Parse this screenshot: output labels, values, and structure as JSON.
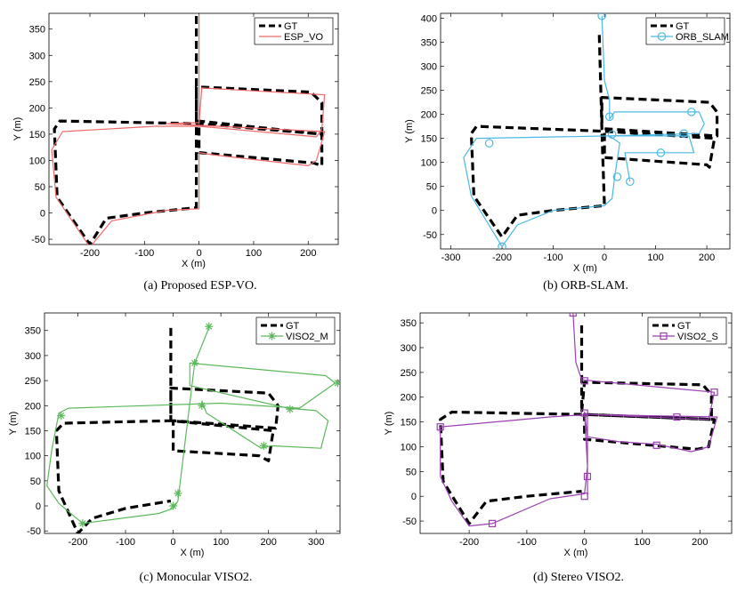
{
  "chart_data": [
    {
      "type": "line",
      "caption": "(a) Proposed ESP-VO.",
      "xlabel": "X (m)",
      "ylabel": "Y (m)",
      "xlim": [
        -275,
        255
      ],
      "ylim": [
        -60,
        380
      ],
      "xticks": [
        -200,
        -100,
        0,
        100,
        200
      ],
      "yticks": [
        -50,
        0,
        50,
        100,
        150,
        200,
        250,
        300,
        350
      ],
      "legend": "top-right",
      "series": [
        {
          "name": "GT",
          "color": "#000000",
          "style": "dashed",
          "marker": "",
          "points": [
            [
              -5,
              375
            ],
            [
              -5,
              170
            ],
            [
              -5,
              240
            ],
            [
              205,
              230
            ],
            [
              225,
              210
            ],
            [
              225,
              150
            ],
            [
              0,
              175
            ],
            [
              0,
              115
            ],
            [
              210,
              95
            ],
            [
              225,
              90
            ],
            [
              225,
              150
            ],
            [
              0,
              170
            ],
            [
              -255,
              175
            ],
            [
              -265,
              160
            ],
            [
              -260,
              30
            ],
            [
              -200,
              -60
            ],
            [
              -170,
              -10
            ],
            [
              -100,
              0
            ],
            [
              -5,
              10
            ],
            [
              -5,
              170
            ]
          ]
        },
        {
          "name": "ESP_VO",
          "color": "#ee6a6a",
          "style": "solid",
          "marker": "",
          "points": [
            [
              0,
              378
            ],
            [
              0,
              170
            ],
            [
              5,
              238
            ],
            [
              230,
              225
            ],
            [
              225,
              160
            ],
            [
              215,
              145
            ],
            [
              0,
              165
            ],
            [
              -80,
              165
            ],
            [
              -250,
              155
            ],
            [
              -270,
              120
            ],
            [
              -262,
              30
            ],
            [
              -200,
              -65
            ],
            [
              -160,
              -15
            ],
            [
              -60,
              5
            ],
            [
              0,
              8
            ],
            [
              0,
              115
            ],
            [
              30,
              110
            ],
            [
              200,
              90
            ],
            [
              215,
              100
            ],
            [
              230,
              155
            ],
            [
              -60,
              170
            ],
            [
              0,
              172
            ]
          ],
          "marker_points": []
        }
      ]
    },
    {
      "type": "line",
      "caption": "(b) ORB-SLAM.",
      "xlabel": "X (m)",
      "ylabel": "Y (m)",
      "xlim": [
        -320,
        245
      ],
      "ylim": [
        -80,
        410
      ],
      "xticks": [
        -300,
        -200,
        -100,
        0,
        100,
        200
      ],
      "yticks": [
        -50,
        0,
        50,
        100,
        150,
        200,
        250,
        300,
        350,
        400
      ],
      "legend": "top-right",
      "series": [
        {
          "name": "GT",
          "color": "#000000",
          "style": "dashed",
          "marker": "",
          "points": [
            [
              -10,
              365
            ],
            [
              -5,
              170
            ],
            [
              -5,
              235
            ],
            [
              205,
              225
            ],
            [
              220,
              205
            ],
            [
              220,
              155
            ],
            [
              0,
              170
            ],
            [
              0,
              110
            ],
            [
              200,
              95
            ],
            [
              205,
              90
            ],
            [
              215,
              150
            ],
            [
              -5,
              165
            ],
            [
              -250,
              175
            ],
            [
              -260,
              160
            ],
            [
              -255,
              30
            ],
            [
              -200,
              -55
            ],
            [
              -170,
              -10
            ],
            [
              -100,
              0
            ],
            [
              0,
              10
            ],
            [
              -5,
              165
            ]
          ]
        },
        {
          "name": "ORB_SLAM",
          "color": "#4ab9e6",
          "style": "solid",
          "marker": "circle",
          "points": [
            [
              -5,
              405
            ],
            [
              0,
              270
            ],
            [
              10,
              230
            ],
            [
              10,
              190
            ],
            [
              20,
              205
            ],
            [
              185,
              205
            ],
            [
              195,
              180
            ],
            [
              185,
              160
            ],
            [
              10,
              155
            ],
            [
              -250,
              150
            ],
            [
              -275,
              110
            ],
            [
              -260,
              30
            ],
            [
              -200,
              -75
            ],
            [
              -170,
              -30
            ],
            [
              -100,
              0
            ],
            [
              0,
              10
            ],
            [
              15,
              25
            ],
            [
              20,
              70
            ],
            [
              30,
              140
            ],
            [
              10,
              155
            ],
            [
              165,
              155
            ],
            [
              175,
              120
            ],
            [
              40,
              120
            ],
            [
              50,
              60
            ]
          ],
          "marker_points": [
            [
              -5,
              405
            ],
            [
              170,
              205
            ],
            [
              10,
              195
            ],
            [
              155,
              160
            ],
            [
              15,
              158
            ],
            [
              -225,
              140
            ],
            [
              110,
              120
            ],
            [
              25,
              70
            ],
            [
              50,
              60
            ],
            [
              -200,
              -75
            ]
          ]
        }
      ]
    },
    {
      "type": "line",
      "caption": "(c) Monocular VISO2.",
      "xlabel": "X (m)",
      "ylabel": "Y (m)",
      "xlim": [
        -270,
        350
      ],
      "ylim": [
        -55,
        385
      ],
      "xticks": [
        -200,
        -100,
        0,
        100,
        200,
        300
      ],
      "yticks": [
        -50,
        0,
        50,
        100,
        150,
        200,
        250,
        300,
        350
      ],
      "legend": "top-right",
      "series": [
        {
          "name": "GT",
          "color": "#000000",
          "style": "dashed",
          "marker": "",
          "points": [
            [
              -5,
              355
            ],
            [
              -5,
              170
            ],
            [
              -5,
              235
            ],
            [
              200,
              225
            ],
            [
              220,
              200
            ],
            [
              215,
              155
            ],
            [
              0,
              170
            ],
            [
              0,
              110
            ],
            [
              180,
              100
            ],
            [
              200,
              90
            ],
            [
              210,
              150
            ],
            [
              -5,
              170
            ],
            [
              -230,
              165
            ],
            [
              -245,
              150
            ],
            [
              -240,
              30
            ],
            [
              -200,
              -55
            ],
            [
              -170,
              -25
            ],
            [
              -100,
              -5
            ],
            [
              -5,
              10
            ]
          ]
        },
        {
          "name": "VISO2_M",
          "color": "#5db85b",
          "style": "solid",
          "marker": "star",
          "points": [
            [
              75,
              355
            ],
            [
              45,
              285
            ],
            [
              10,
              10
            ],
            [
              0,
              -5
            ],
            [
              -30,
              -15
            ],
            [
              -190,
              -35
            ],
            [
              -240,
              5
            ],
            [
              -265,
              40
            ],
            [
              -255,
              110
            ],
            [
              -240,
              185
            ],
            [
              -220,
              195
            ],
            [
              100,
              205
            ],
            [
              265,
              195
            ],
            [
              340,
              245
            ],
            [
              320,
              260
            ],
            [
              35,
              285
            ],
            [
              35,
              240
            ],
            [
              240,
              195
            ],
            [
              300,
              190
            ],
            [
              325,
              170
            ],
            [
              310,
              115
            ],
            [
              205,
              120
            ],
            [
              185,
              115
            ],
            [
              70,
              185
            ],
            [
              60,
              210
            ]
          ],
          "marker_points": [
            [
              75,
              358
            ],
            [
              45,
              285
            ],
            [
              60,
              200
            ],
            [
              10,
              25
            ],
            [
              0,
              0
            ],
            [
              -190,
              -35
            ],
            [
              -235,
              180
            ],
            [
              190,
              120
            ],
            [
              245,
              193
            ],
            [
              345,
              245
            ]
          ]
        }
      ]
    },
    {
      "type": "line",
      "caption": "(d) Stereo VISO2.",
      "xlabel": "X (m)",
      "ylabel": "Y (m)",
      "xlim": [
        -285,
        255
      ],
      "ylim": [
        -75,
        370
      ],
      "xticks": [
        -200,
        -100,
        0,
        100,
        200
      ],
      "yticks": [
        -50,
        0,
        50,
        100,
        150,
        200,
        250,
        300,
        350
      ],
      "legend": "top-right",
      "series": [
        {
          "name": "GT",
          "color": "#000000",
          "style": "dashed",
          "marker": "",
          "points": [
            [
              -5,
              345
            ],
            [
              -5,
              170
            ],
            [
              0,
              230
            ],
            [
              205,
              225
            ],
            [
              220,
              205
            ],
            [
              220,
              155
            ],
            [
              0,
              165
            ],
            [
              0,
              115
            ],
            [
              195,
              95
            ],
            [
              215,
              100
            ],
            [
              225,
              155
            ],
            [
              0,
              165
            ],
            [
              -230,
              170
            ],
            [
              -250,
              155
            ],
            [
              -245,
              30
            ],
            [
              -200,
              -55
            ],
            [
              -170,
              -10
            ],
            [
              -100,
              0
            ],
            [
              -5,
              10
            ]
          ]
        },
        {
          "name": "VISO2_S",
          "color": "#9b3fb3",
          "style": "solid",
          "marker": "square",
          "points": [
            [
              -20,
              370
            ],
            [
              -15,
              270
            ],
            [
              -5,
              235
            ],
            [
              225,
              210
            ],
            [
              215,
              155
            ],
            [
              5,
              165
            ],
            [
              -60,
              160
            ],
            [
              -250,
              140
            ],
            [
              -250,
              40
            ],
            [
              -230,
              -10
            ],
            [
              -200,
              -60
            ],
            [
              -160,
              -55
            ],
            [
              -60,
              -5
            ],
            [
              0,
              5
            ],
            [
              5,
              60
            ],
            [
              0,
              170
            ],
            [
              5,
              120
            ],
            [
              60,
              110
            ],
            [
              125,
              105
            ],
            [
              185,
              90
            ],
            [
              215,
              100
            ],
            [
              230,
              160
            ],
            [
              5,
              165
            ],
            [
              5,
              0
            ]
          ],
          "marker_points": [
            [
              -20,
              370
            ],
            [
              0,
              233
            ],
            [
              225,
              210
            ],
            [
              160,
              160
            ],
            [
              0,
              168
            ],
            [
              -250,
              140
            ],
            [
              125,
              103
            ],
            [
              5,
              40
            ],
            [
              0,
              0
            ],
            [
              -160,
              -55
            ]
          ]
        }
      ]
    }
  ]
}
